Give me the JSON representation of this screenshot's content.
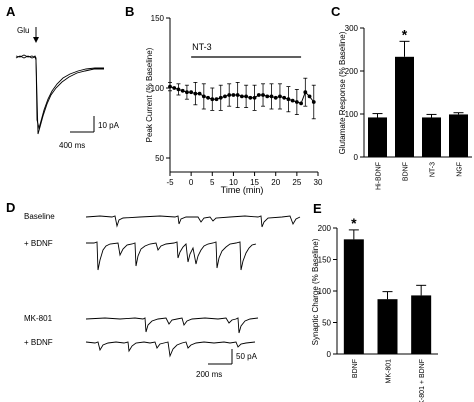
{
  "panels": {
    "A": {
      "label": "A"
    },
    "B": {
      "label": "B"
    },
    "C": {
      "label": "C"
    },
    "D": {
      "label": "D"
    },
    "E": {
      "label": "E"
    }
  },
  "panel_a": {
    "glu_label": "Glu",
    "scale_y_label": "10 pA",
    "scale_x_label": "400 ms"
  },
  "panel_d": {
    "trace_labels": [
      "Baseline",
      "+ BDNF",
      "MK-801",
      "+ BDNF"
    ],
    "scale_y_label": "50 pA",
    "scale_x_label": "200 ms"
  },
  "chart_data": [
    {
      "panel": "B",
      "type": "line",
      "ylabel": "Peak Current (% Baseline)",
      "xlabel": "Time (min)",
      "xlim": [
        -5,
        30
      ],
      "ylim": [
        40,
        150
      ],
      "xticks": [
        -5,
        0,
        5,
        10,
        15,
        20,
        25,
        30
      ],
      "yticks": [
        50,
        100,
        150
      ],
      "annotation": {
        "text": "NT-3",
        "x_start": 0,
        "x_end": 26
      },
      "x": [
        -5,
        -4,
        -3,
        -2,
        -1,
        0,
        1,
        2,
        3,
        4,
        5,
        6,
        7,
        8,
        9,
        10,
        11,
        12,
        13,
        14,
        15,
        16,
        17,
        18,
        19,
        20,
        21,
        22,
        23,
        24,
        25,
        26,
        27,
        28,
        29
      ],
      "y": [
        101,
        100,
        99,
        98,
        97,
        97,
        96,
        96,
        94,
        93,
        92,
        92,
        93,
        94,
        95,
        95,
        95,
        94,
        94,
        93,
        93,
        95,
        95,
        94,
        94,
        93,
        94,
        93,
        92,
        91,
        90,
        89,
        97,
        94,
        90
      ],
      "err": [
        3,
        4,
        4,
        5,
        5,
        6,
        8,
        8,
        9,
        8,
        8,
        9,
        9,
        9,
        8,
        9,
        9,
        9,
        8,
        9,
        9,
        9,
        8,
        9,
        9,
        9,
        9,
        10,
        9,
        10,
        9,
        12,
        10,
        11,
        12
      ]
    },
    {
      "panel": "C",
      "type": "bar",
      "ylabel": "Glutamate Response (% Baseline)",
      "ylim": [
        0,
        300
      ],
      "yticks": [
        0,
        100,
        200,
        300
      ],
      "categories": [
        "Hi-BDNF",
        "BDNF",
        "NT-3",
        "NGF"
      ],
      "values": [
        92,
        233,
        92,
        99
      ],
      "errors": [
        9,
        36,
        7,
        4
      ],
      "significance": [
        "",
        "*",
        "",
        ""
      ]
    },
    {
      "panel": "E",
      "type": "bar",
      "ylabel": "Synaptic Charge (% Baseline)",
      "ylim": [
        0,
        200
      ],
      "yticks": [
        0,
        50,
        100,
        150,
        200
      ],
      "categories": [
        "BDNF",
        "MK-801",
        "MK-801 + BDNF"
      ],
      "values": [
        182,
        87,
        93
      ],
      "errors": [
        15,
        12,
        16
      ],
      "significance": [
        "*",
        "",
        ""
      ]
    }
  ]
}
